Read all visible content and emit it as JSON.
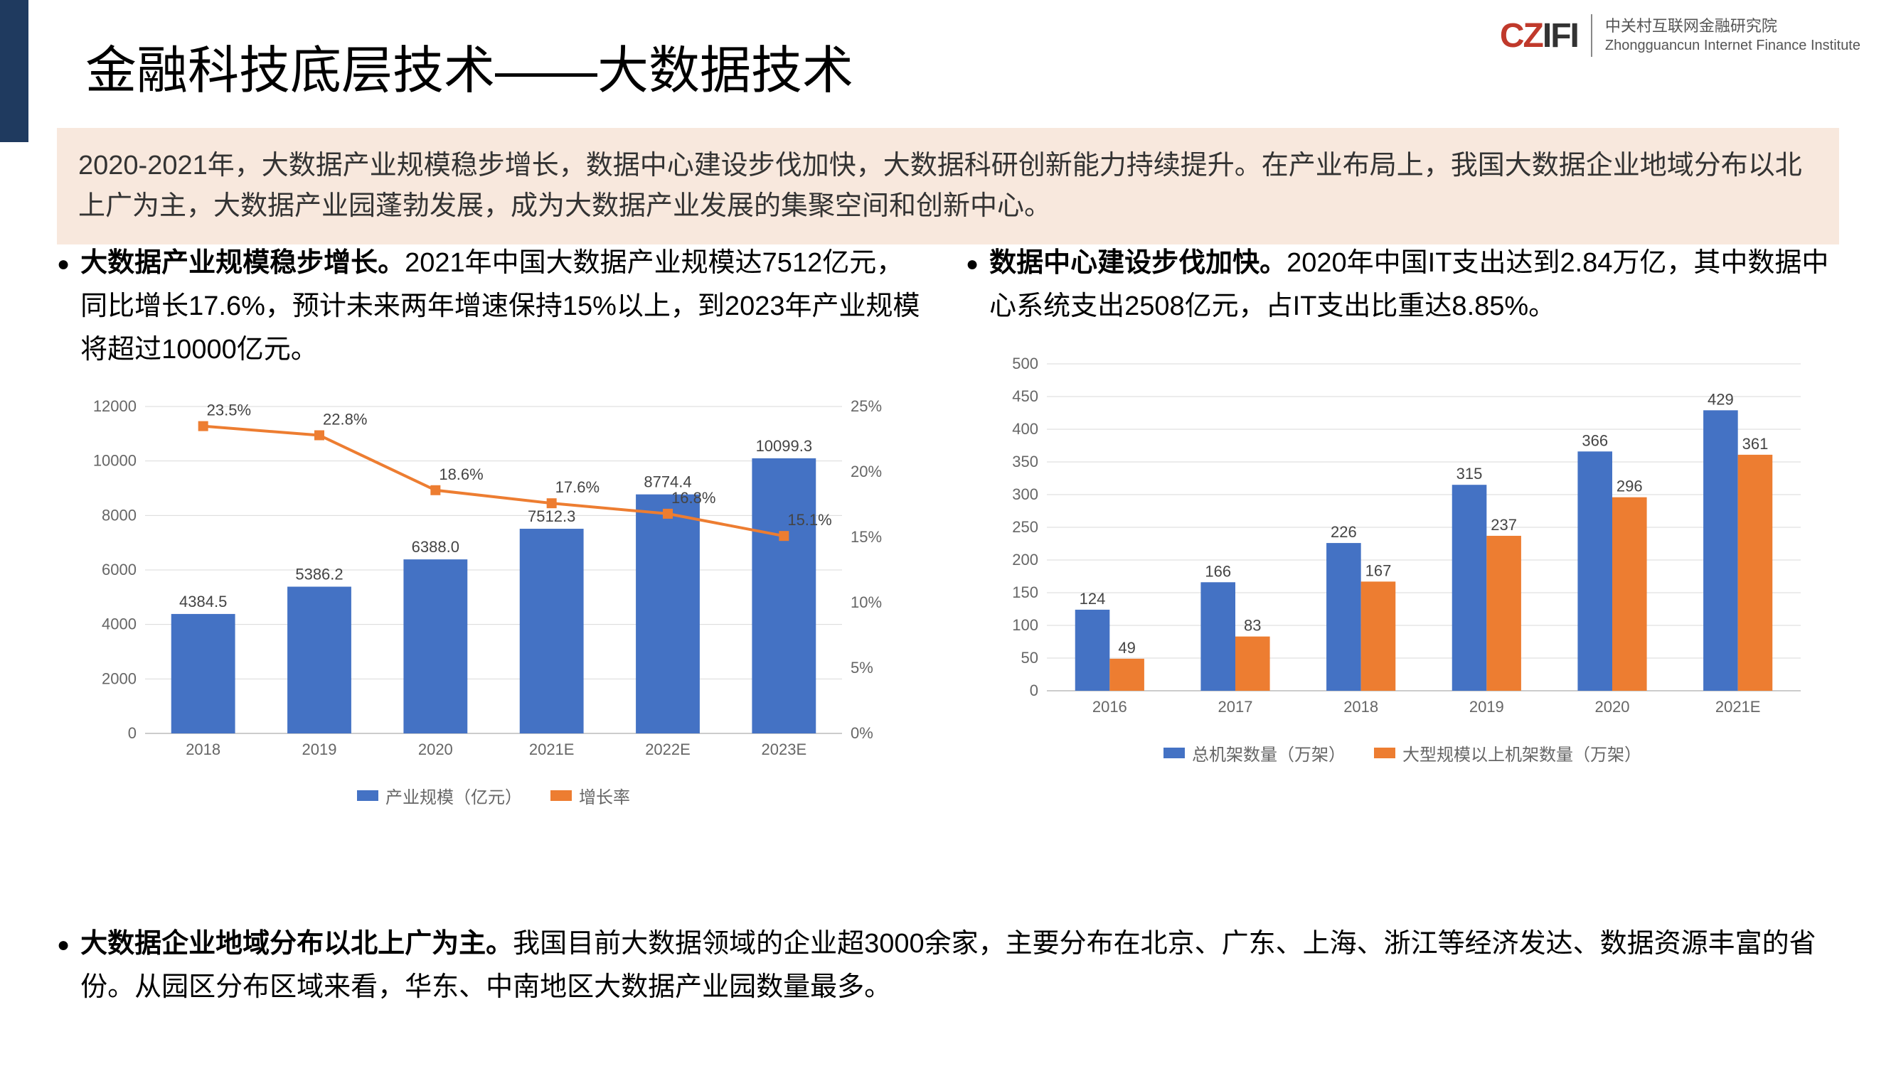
{
  "logo": {
    "mark_prefix": "CZ",
    "mark_suffix": "IFI",
    "cn": "中关村互联网金融研究院",
    "en": "Zhongguancun Internet Finance Institute"
  },
  "title": "金融科技底层技术——大数据技术",
  "intro": "2020-2021年，大数据产业规模稳步增长，数据中心建设步伐加快，大数据科研创新能力持续提升。在产业布局上，我国大数据企业地域分布以北上广为主，大数据产业园蓬勃发展，成为大数据产业发展的集聚空间和创新中心。",
  "bullet_left": {
    "bold": "大数据产业规模稳步增长。",
    "rest": "2021年中国大数据产业规模达7512亿元，同比增长17.6%，预计未来两年增速保持15%以上，到2023年产业规模将超过10000亿元。"
  },
  "bullet_right": {
    "bold": "数据中心建设步伐加快。",
    "rest": "2020年中国IT支出达到2.84万亿，其中数据中心系统支出2508亿元，占IT支出比重达8.85%。"
  },
  "bullet_bottom": {
    "bold": "大数据企业地域分布以北上广为主。",
    "rest": "我国目前大数据领域的企业超3000余家，主要分布在北京、广东、上海、浙江等经济发达、数据资源丰富的省份。从园区分布区域来看，华东、中南地区大数据产业园数量最多。"
  },
  "chart_left": {
    "type": "bar+line",
    "categories": [
      "2018",
      "2019",
      "2020",
      "2021E",
      "2022E",
      "2023E"
    ],
    "bar_values": [
      4384.5,
      5386.2,
      6388.0,
      7512.3,
      8774.4,
      10099.3
    ],
    "bar_labels": [
      "4384.5",
      "5386.2",
      "6388.0",
      "7512.3",
      "8774.4",
      "10099.3"
    ],
    "line_values": [
      23.5,
      22.8,
      18.6,
      17.6,
      16.8,
      15.1
    ],
    "line_labels": [
      "23.5%",
      "22.8%",
      "18.6%",
      "17.6%",
      "16.8%",
      "15.1%"
    ],
    "y1_ticks": [
      0,
      2000,
      4000,
      6000,
      8000,
      10000,
      12000
    ],
    "y2_ticks": [
      "0%",
      "5%",
      "10%",
      "15%",
      "20%",
      "25%"
    ],
    "y1_max": 12000,
    "y2_max": 25,
    "bar_color": "#4472c4",
    "line_color": "#ed7d31",
    "legend": [
      "产业规模（亿元）",
      "增长率"
    ],
    "grid_color": "#d9d9d9",
    "label_fontsize": 22,
    "tick_fontsize": 22
  },
  "chart_right": {
    "type": "grouped-bar",
    "categories": [
      "2016",
      "2017",
      "2018",
      "2019",
      "2020",
      "2021E"
    ],
    "series1_values": [
      124,
      166,
      226,
      315,
      366,
      429
    ],
    "series2_values": [
      49,
      83,
      167,
      237,
      296,
      361
    ],
    "y_ticks": [
      0,
      50,
      100,
      150,
      200,
      250,
      300,
      350,
      400,
      450,
      500
    ],
    "y_max": 500,
    "series1_color": "#4472c4",
    "series2_color": "#ed7d31",
    "legend": [
      "总机架数量（万架）",
      "大型规模以上机架数量（万架）"
    ],
    "grid_color": "#d9d9d9",
    "label_fontsize": 22,
    "tick_fontsize": 22
  },
  "colors": {
    "intro_bg": "#f8e8dd",
    "sidebar": "#1f3a5f"
  }
}
